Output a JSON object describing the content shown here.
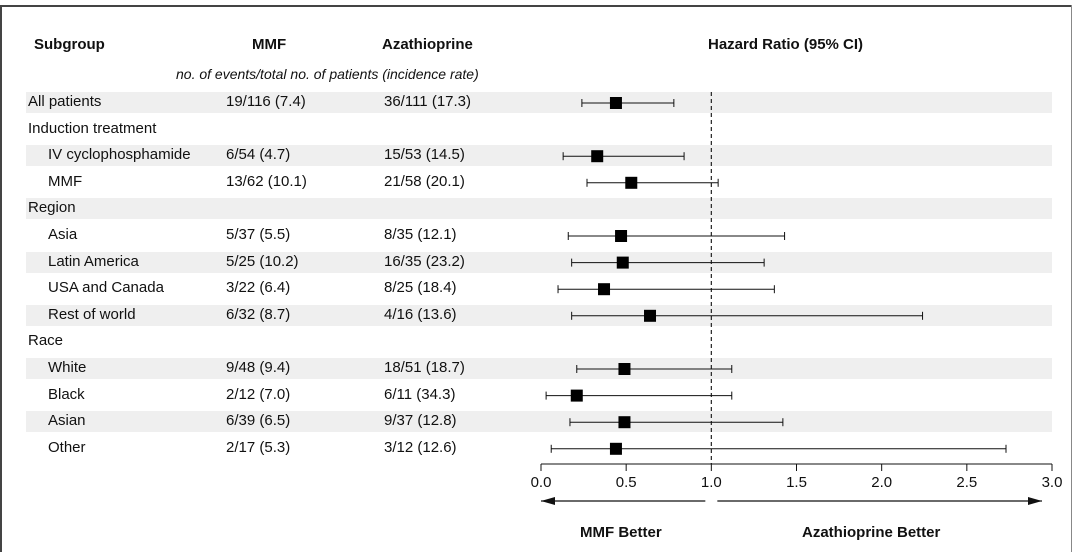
{
  "headers": {
    "subgroup": "Subgroup",
    "mmf": "MMF",
    "azathioprine": "Azathioprine",
    "hazard_ratio": "Hazard Ratio (95% CI)",
    "subheader": "no. of events/total no. of patients (incidence rate)"
  },
  "rows": [
    {
      "label": "All patients",
      "indent": false,
      "shaded": true,
      "mmf": "19/116 (7.4)",
      "aza": "36/111 (17.3)"
    },
    {
      "label": "Induction treatment",
      "indent": false,
      "shaded": false,
      "mmf": "",
      "aza": ""
    },
    {
      "label": "IV cyclophosphamide",
      "indent": true,
      "shaded": true,
      "mmf": "6/54 (4.7)",
      "aza": "15/53 (14.5)"
    },
    {
      "label": "MMF",
      "indent": true,
      "shaded": false,
      "mmf": "13/62 (10.1)",
      "aza": "21/58 (20.1)"
    },
    {
      "label": "Region",
      "indent": false,
      "shaded": true,
      "mmf": "",
      "aza": ""
    },
    {
      "label": "Asia",
      "indent": true,
      "shaded": false,
      "mmf": "5/37 (5.5)",
      "aza": "8/35 (12.1)"
    },
    {
      "label": "Latin America",
      "indent": true,
      "shaded": true,
      "mmf": "5/25 (10.2)",
      "aza": "16/35 (23.2)"
    },
    {
      "label": "USA and Canada",
      "indent": true,
      "shaded": false,
      "mmf": "3/22 (6.4)",
      "aza": "8/25 (18.4)"
    },
    {
      "label": "Rest of world",
      "indent": true,
      "shaded": true,
      "mmf": "6/32 (8.7)",
      "aza": "4/16 (13.6)"
    },
    {
      "label": "Race",
      "indent": false,
      "shaded": false,
      "mmf": "",
      "aza": ""
    },
    {
      "label": "White",
      "indent": true,
      "shaded": true,
      "mmf": "9/48 (9.4)",
      "aza": "18/51 (18.7)"
    },
    {
      "label": "Black",
      "indent": true,
      "shaded": false,
      "mmf": "2/12 (7.0)",
      "aza": "6/11 (34.3)"
    },
    {
      "label": "Asian",
      "indent": true,
      "shaded": true,
      "mmf": "6/39 (6.5)",
      "aza": "9/37 (12.8)"
    },
    {
      "label": "Other",
      "indent": true,
      "shaded": false,
      "mmf": "2/17 (5.3)",
      "aza": "3/12 (12.6)"
    }
  ],
  "chart_data": {
    "type": "forest",
    "xlabel": "",
    "xlim": [
      0.0,
      3.0
    ],
    "reference_line": 1.0,
    "xticks": [
      "0.0",
      "0.5",
      "1.0",
      "1.5",
      "2.0",
      "2.5",
      "3.0"
    ],
    "left_note": "MMF Better",
    "right_note": "Azathioprine Better",
    "points": [
      {
        "label": "All patients",
        "hr": 0.44,
        "lo": 0.24,
        "hi": 0.78
      },
      {
        "label": "Induction treatment",
        "hr": null,
        "lo": null,
        "hi": null
      },
      {
        "label": "IV cyclophosphamide",
        "hr": 0.33,
        "lo": 0.13,
        "hi": 0.84
      },
      {
        "label": "MMF",
        "hr": 0.53,
        "lo": 0.27,
        "hi": 1.04
      },
      {
        "label": "Region",
        "hr": null,
        "lo": null,
        "hi": null
      },
      {
        "label": "Asia",
        "hr": 0.47,
        "lo": 0.16,
        "hi": 1.43
      },
      {
        "label": "Latin America",
        "hr": 0.48,
        "lo": 0.18,
        "hi": 1.31
      },
      {
        "label": "USA and Canada",
        "hr": 0.37,
        "lo": 0.1,
        "hi": 1.37
      },
      {
        "label": "Rest of world",
        "hr": 0.64,
        "lo": 0.18,
        "hi": 2.24
      },
      {
        "label": "Race",
        "hr": null,
        "lo": null,
        "hi": null
      },
      {
        "label": "White",
        "hr": 0.49,
        "lo": 0.21,
        "hi": 1.12
      },
      {
        "label": "Black",
        "hr": 0.21,
        "lo": 0.03,
        "hi": 1.12
      },
      {
        "label": "Asian",
        "hr": 0.49,
        "lo": 0.17,
        "hi": 1.42
      },
      {
        "label": "Other",
        "hr": 0.44,
        "lo": 0.06,
        "hi": 2.73
      }
    ]
  }
}
